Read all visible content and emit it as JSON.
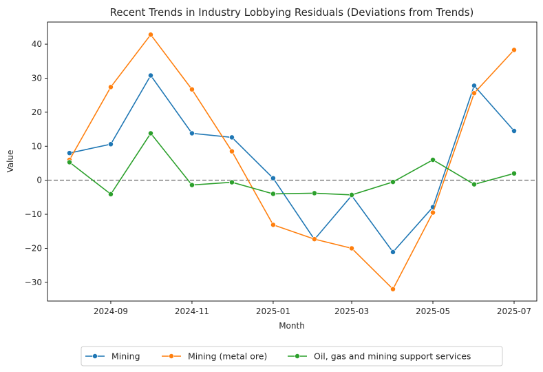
{
  "chart_data": {
    "type": "line",
    "title": "Recent Trends in Industry Lobbying Residuals (Deviations from Trends)",
    "xlabel": "Month",
    "ylabel": "Value",
    "x": [
      "2024-08",
      "2024-09",
      "2024-10",
      "2024-11",
      "2024-12",
      "2025-01",
      "2025-02",
      "2025-03",
      "2025-04",
      "2025-05",
      "2025-06",
      "2025-07"
    ],
    "x_ticks": [
      "2024-09",
      "2024-11",
      "2025-01",
      "2025-03",
      "2025-05",
      "2025-07"
    ],
    "ylim": [
      -35.5,
      46.5
    ],
    "y_ticks": [
      -30,
      -20,
      -10,
      0,
      10,
      20,
      30,
      40
    ],
    "reference_line": {
      "y": 0,
      "style": "dashed",
      "color": "#808080"
    },
    "grid": false,
    "legend_position": "bottom-center",
    "series": [
      {
        "name": "Mining",
        "color": "#1f77b4",
        "values": [
          8.0,
          10.6,
          30.8,
          13.8,
          12.6,
          0.6,
          -17.4,
          -4.5,
          -21.1,
          -7.9,
          27.8,
          14.5
        ]
      },
      {
        "name": "Mining (metal ore)",
        "color": "#ff7f0e",
        "values": [
          6.0,
          27.4,
          42.8,
          26.7,
          8.5,
          -13.1,
          -17.3,
          -20.0,
          -32.0,
          -9.5,
          25.6,
          38.3
        ]
      },
      {
        "name": "Oil, gas and mining support services",
        "color": "#2ca02c",
        "values": [
          5.3,
          -4.1,
          13.8,
          -1.4,
          -0.6,
          -4.0,
          -3.8,
          -4.3,
          -0.5,
          6.0,
          -1.2,
          2.0
        ]
      }
    ]
  }
}
